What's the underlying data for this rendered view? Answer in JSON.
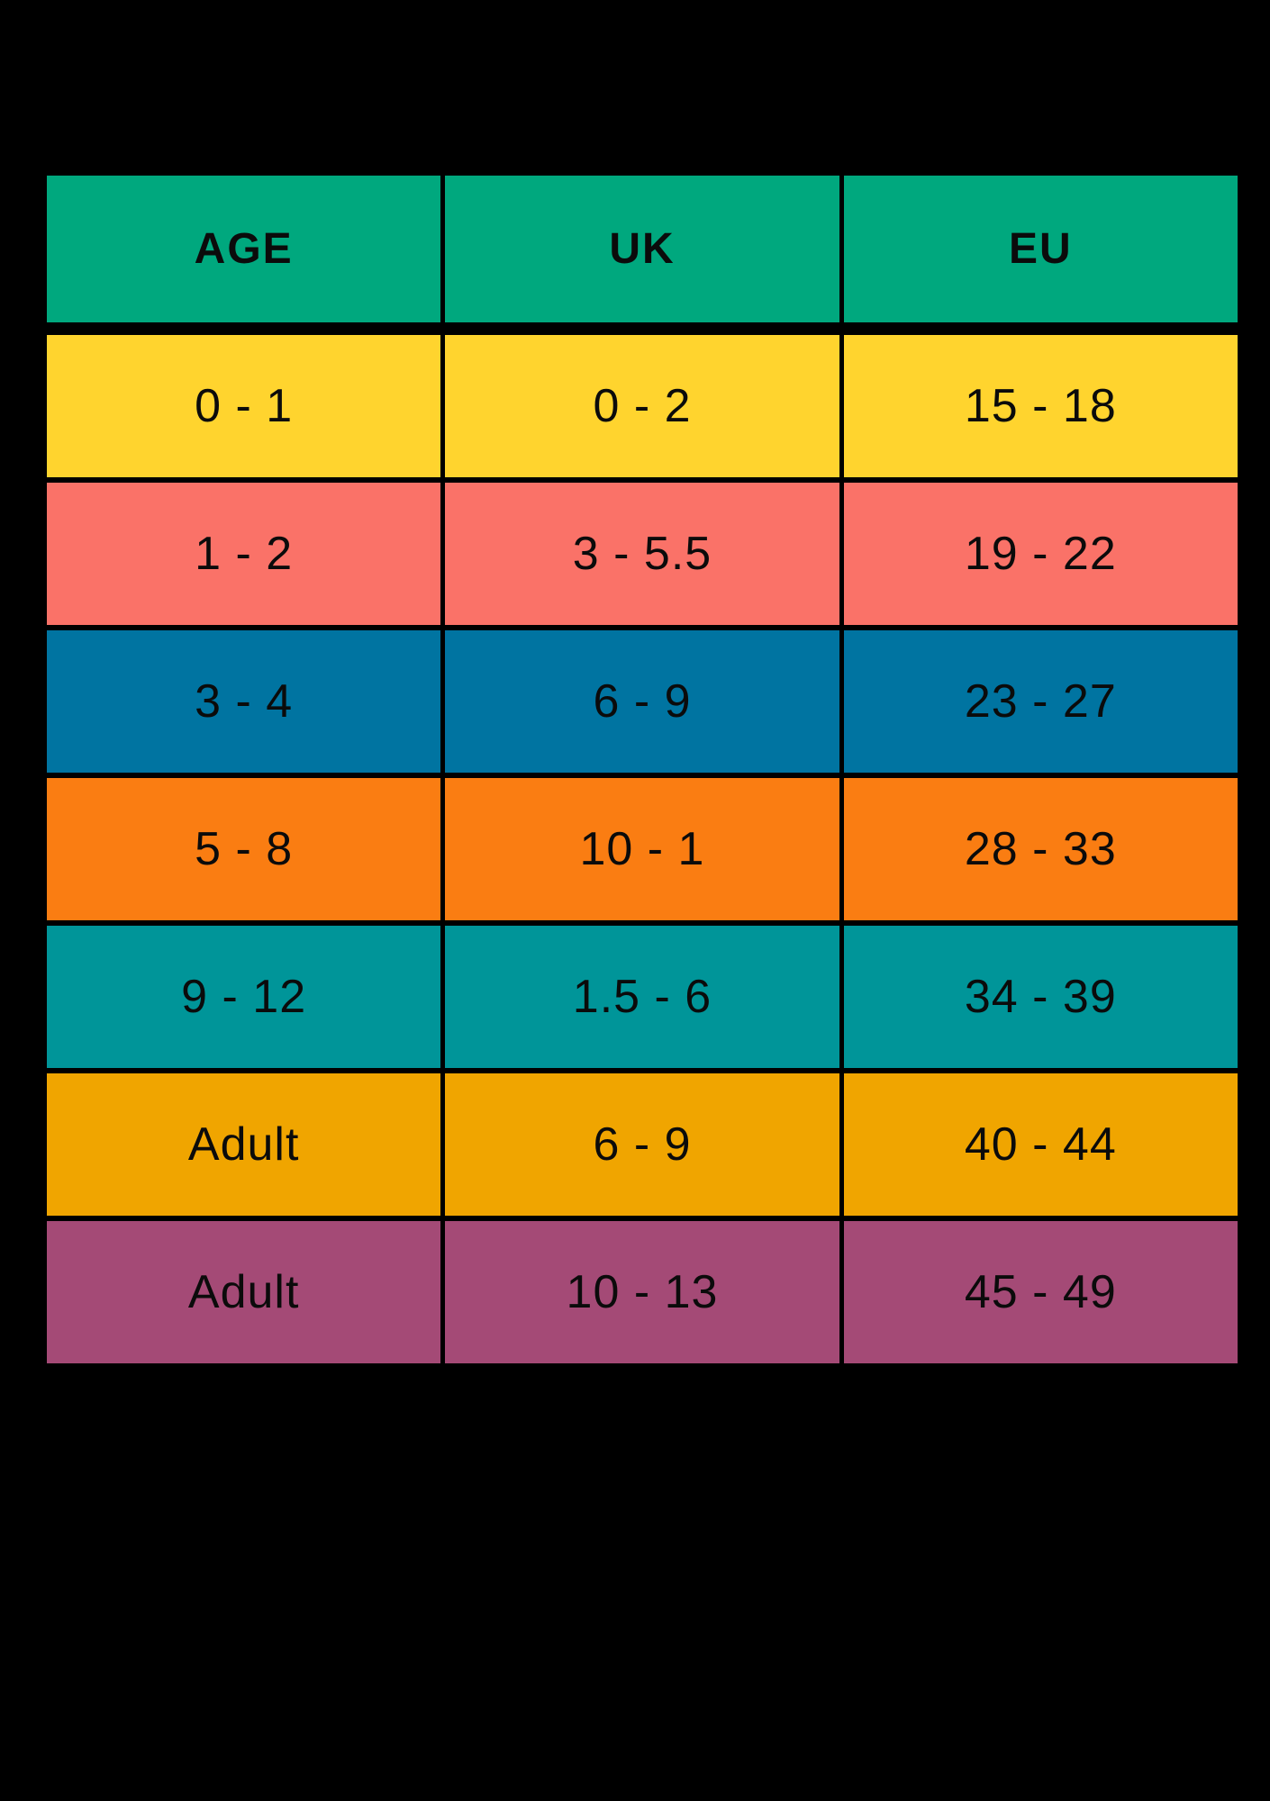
{
  "background": "#000000",
  "text_color": "#0b0b0b",
  "table": {
    "header": {
      "color": "#00A87E",
      "labels": [
        "AGE",
        "UK",
        "EU"
      ]
    },
    "rows": [
      {
        "color": "#FFD42E",
        "cells": [
          "0 - 1",
          "0 - 2",
          "15 - 18"
        ]
      },
      {
        "color": "#FA7268",
        "cells": [
          "1 - 2",
          "3 - 5.5",
          "19 - 22"
        ]
      },
      {
        "color": "#0074A1",
        "cells": [
          "3 - 4",
          "6 - 9",
          "23 - 27"
        ]
      },
      {
        "color": "#FA7D12",
        "cells": [
          "5 - 8",
          "10 - 1",
          "28 - 33"
        ]
      },
      {
        "color": "#009599",
        "cells": [
          "9 - 12",
          "1.5 - 6",
          "34 - 39"
        ]
      },
      {
        "color": "#F0A500",
        "cells": [
          "Adult",
          "6 - 9",
          "40 - 44"
        ]
      },
      {
        "color": "#A44A76",
        "cells": [
          "Adult",
          "10 - 13",
          "45 - 49"
        ]
      }
    ]
  },
  "chart_data": {
    "type": "table",
    "columns": [
      "AGE",
      "UK",
      "EU"
    ],
    "rows": [
      [
        "0 - 1",
        "0 - 2",
        "15 - 18"
      ],
      [
        "1 - 2",
        "3 - 5.5",
        "19 - 22"
      ],
      [
        "3 - 4",
        "6 - 9",
        "23 - 27"
      ],
      [
        "5 - 8",
        "10 - 1",
        "28 - 33"
      ],
      [
        "9 - 12",
        "1.5 - 6",
        "34 - 39"
      ],
      [
        "Adult",
        "6 - 9",
        "40 - 44"
      ],
      [
        "Adult",
        "10 - 13",
        "45 - 49"
      ]
    ],
    "header_color": "#00A87E",
    "row_colors": [
      "#FFD42E",
      "#FA7268",
      "#0074A1",
      "#FA7D12",
      "#009599",
      "#F0A500",
      "#A44A76"
    ],
    "layout_hints": {
      "grid": "black gaps between cells",
      "background": "#000000"
    }
  }
}
